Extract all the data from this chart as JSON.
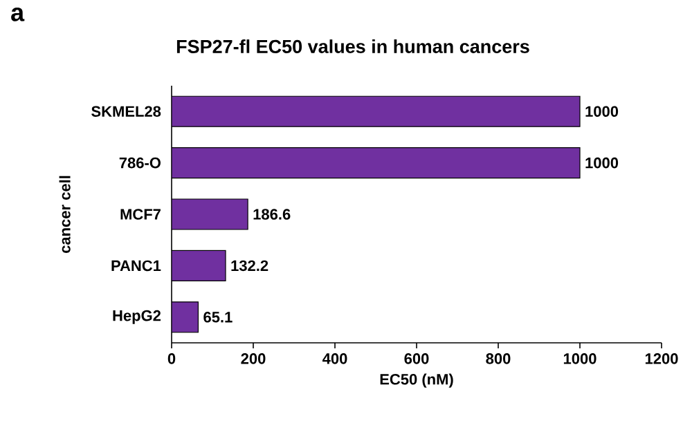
{
  "chart_data": {
    "type": "bar",
    "orientation": "horizontal",
    "title": "FSP27-fl EC50 values in human cancers",
    "xlabel": "EC50 (nM)",
    "ylabel": "cancer cell",
    "categories": [
      "SKMEL28",
      "786-O",
      "MCF7",
      "PANC1",
      "HepG2"
    ],
    "values": [
      1000,
      1000,
      186.6,
      132.2,
      65.1
    ],
    "color": "#7030a0",
    "xlim": [
      0,
      1200
    ],
    "xticks": [
      0,
      200,
      400,
      600,
      800,
      1000,
      1200
    ],
    "data_labels": true,
    "annotations": [
      "a"
    ]
  }
}
